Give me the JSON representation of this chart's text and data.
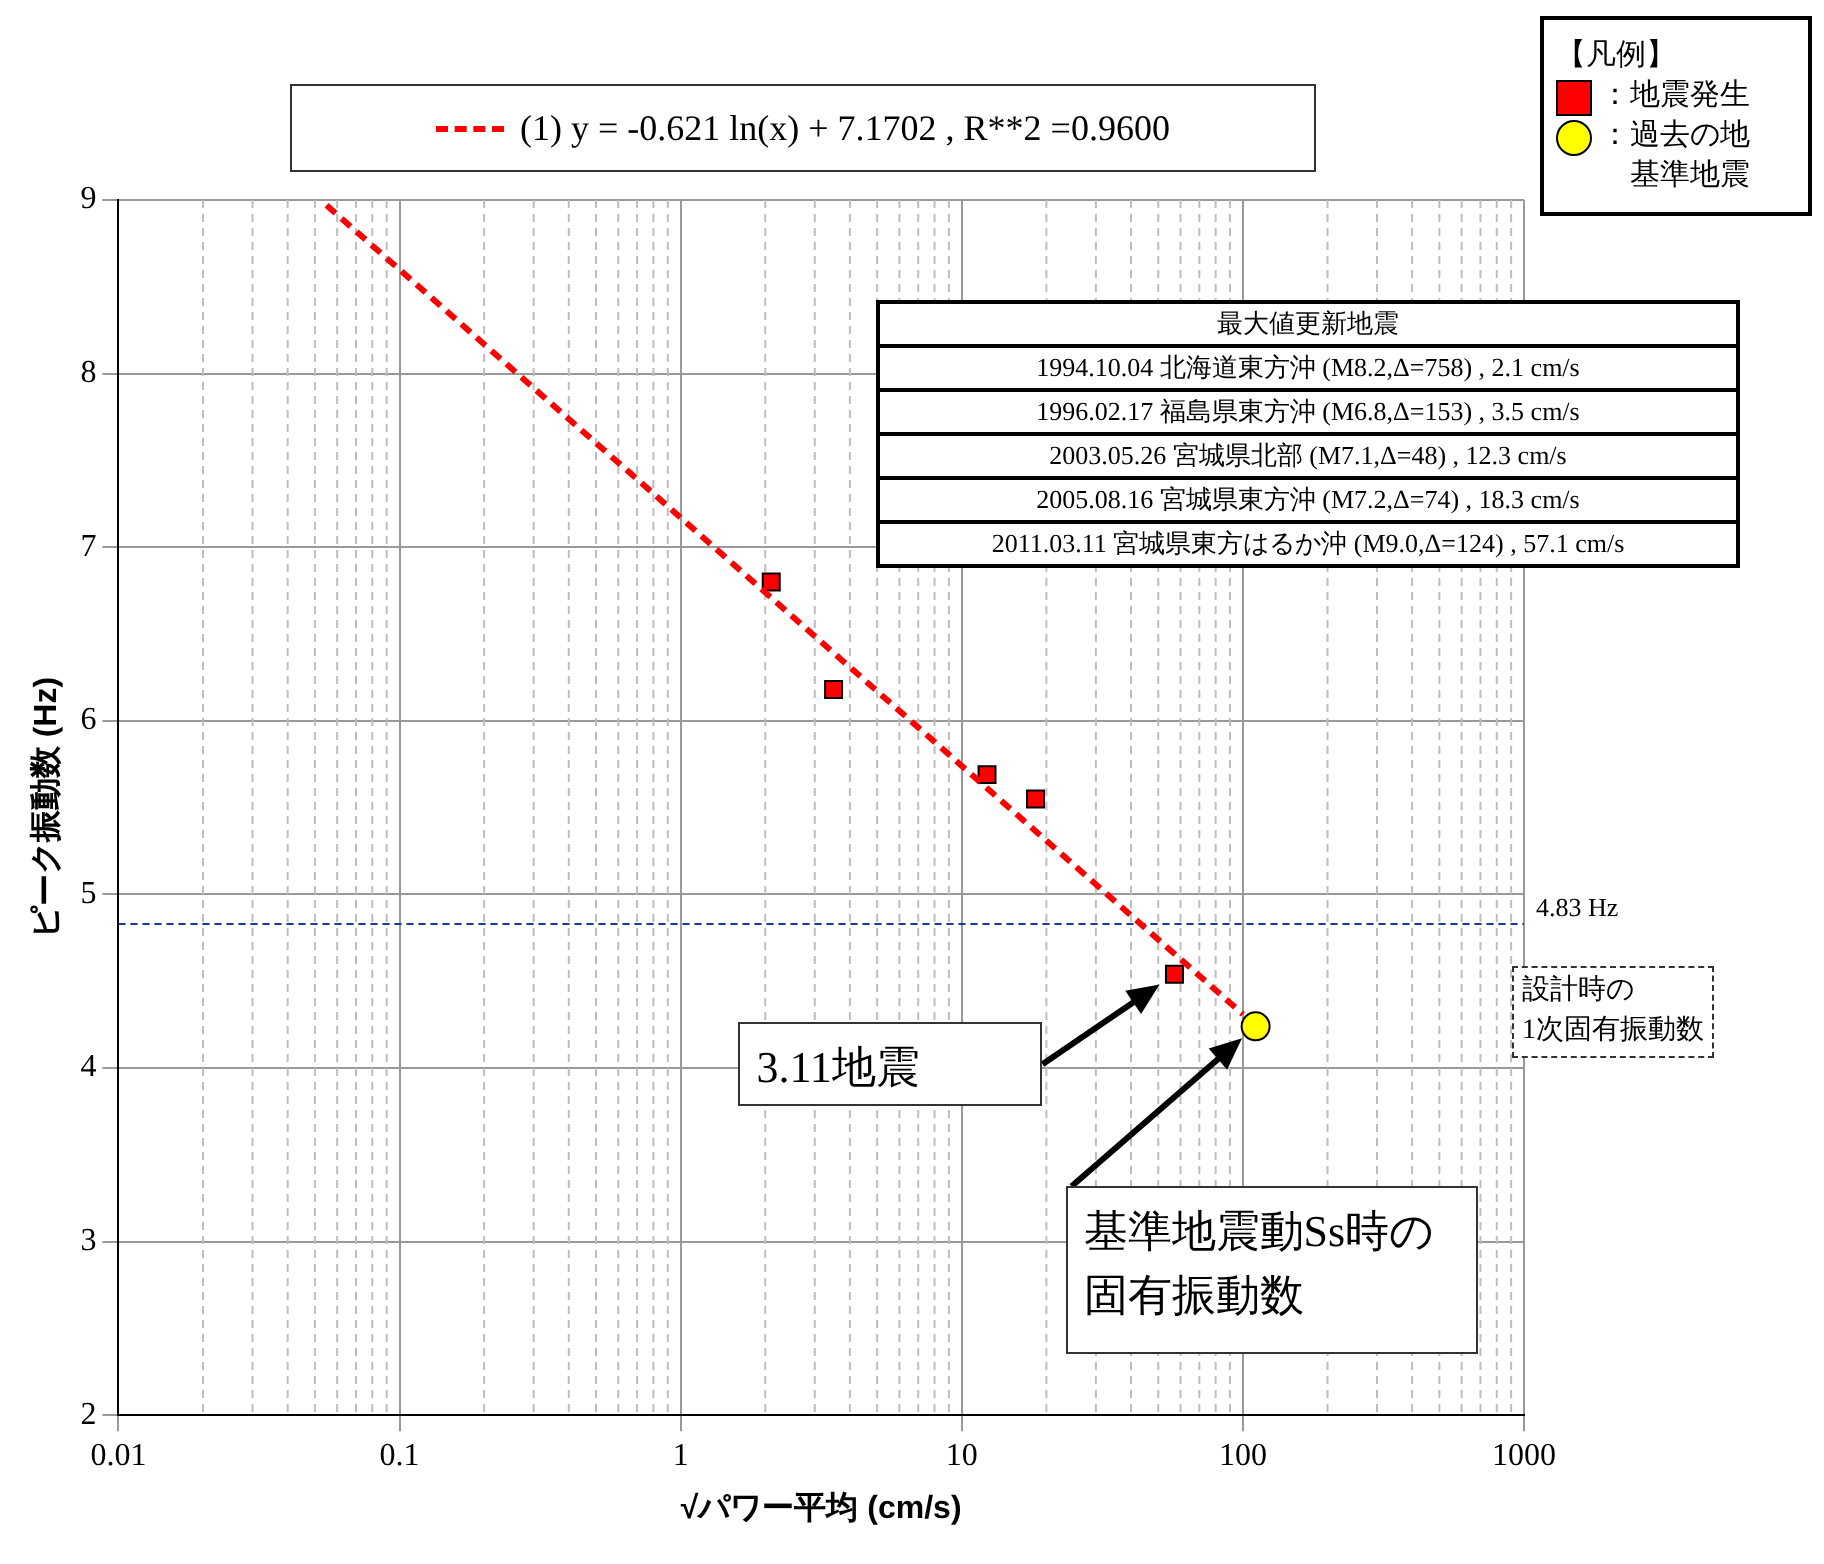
{
  "chart_data": {
    "type": "scatter",
    "xlabel": "√パワー平均 (cm/s)",
    "ylabel": "ピーク振動数 (Hz)",
    "log": "x",
    "xlim": [
      0.01,
      1000
    ],
    "xticks": [
      0.01,
      0.1,
      1,
      10,
      100,
      1000
    ],
    "ylim": [
      2,
      9
    ],
    "yticks": [
      2,
      3,
      4,
      5,
      6,
      7,
      8,
      9
    ],
    "grid": true,
    "legend": "top",
    "legend_title": "【凡例】",
    "series": [
      {
        "name": "：地震発生",
        "marker": "square",
        "color": "#ff0000",
        "x": [
          2.1,
          3.5,
          12.3,
          18.3,
          57.1
        ],
        "values": [
          6.8,
          6.18,
          5.69,
          5.55,
          4.54
        ]
      },
      {
        "name": "：過去の地基準地震",
        "marker": "circle",
        "color": "#ffff00",
        "x": [
          111
        ],
        "values": [
          4.24
        ]
      },
      {
        "name": "(1)  y = -0.621 ln(x) + 7.1702 , R**2 =0.9600",
        "type": "line",
        "marker": "none",
        "line_style": "dashed",
        "color": "#ff0000",
        "x": [
          0.055,
          1,
          10,
          100
        ],
        "values": [
          8.97,
          7.17,
          5.74,
          4.31
        ]
      }
    ],
    "ref_lines": [
      {
        "axis": "y",
        "value": 4.83,
        "label": "4.83 Hz",
        "color": "#1f3a93",
        "line_style": "dashed"
      }
    ],
    "annotations": [
      "最大値更新地震",
      "1994.10.04 北海道東方沖 (M8.2,Δ=758) , 2.1 cm/s",
      "1996.02.17 福島県東方沖 (M6.8,Δ=153) , 3.5 cm/s",
      "2003.05.26 宮城県北部 (M7.1,Δ=48) , 12.3 cm/s",
      "2005.08.16 宮城県東方沖 (M7.2,Δ=74) , 18.3 cm/s",
      "2011.03.11 宮城県東方はるか沖 (M9.0,Δ=124) , 57.1 cm/s",
      "設計時の\n1次固有振動数",
      "3.11地震",
      "基準地震動Ss時の固有振動数"
    ]
  }
}
